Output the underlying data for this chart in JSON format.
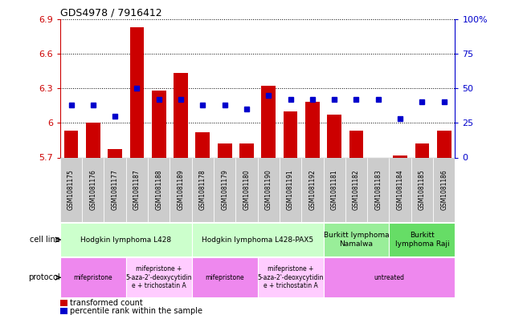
{
  "title": "GDS4978 / 7916412",
  "samples": [
    "GSM1081175",
    "GSM1081176",
    "GSM1081177",
    "GSM1081187",
    "GSM1081188",
    "GSM1081189",
    "GSM1081178",
    "GSM1081179",
    "GSM1081180",
    "GSM1081190",
    "GSM1081191",
    "GSM1081192",
    "GSM1081181",
    "GSM1081182",
    "GSM1081183",
    "GSM1081184",
    "GSM1081185",
    "GSM1081186"
  ],
  "bar_values": [
    5.93,
    6.0,
    5.77,
    6.83,
    6.28,
    6.43,
    5.92,
    5.82,
    5.82,
    6.32,
    6.1,
    6.18,
    6.07,
    5.93,
    5.7,
    5.72,
    5.82,
    5.93
  ],
  "dot_values": [
    38,
    38,
    30,
    50,
    42,
    42,
    38,
    38,
    35,
    45,
    42,
    42,
    42,
    42,
    42,
    28,
    40,
    40
  ],
  "ymin": 5.7,
  "ymax": 6.9,
  "yticks": [
    5.7,
    6.0,
    6.3,
    6.6,
    6.9
  ],
  "ytick_labels": [
    "5.7",
    "6",
    "6.3",
    "6.6",
    "6.9"
  ],
  "y2ticks": [
    0,
    25,
    50,
    75,
    100
  ],
  "y2tick_labels": [
    "0",
    "25",
    "50",
    "75",
    "100%"
  ],
  "bar_color": "#cc0000",
  "dot_color": "#0000cc",
  "cell_line_groups": [
    {
      "label": "Hodgkin lymphoma L428",
      "start": 0,
      "end": 5,
      "color": "#ccffcc"
    },
    {
      "label": "Hodgkin lymphoma L428-PAX5",
      "start": 6,
      "end": 11,
      "color": "#ccffcc"
    },
    {
      "label": "Burkitt lymphoma\nNamalwa",
      "start": 12,
      "end": 14,
      "color": "#99ee99"
    },
    {
      "label": "Burkitt\nlymphoma Raji",
      "start": 15,
      "end": 17,
      "color": "#66dd66"
    }
  ],
  "protocol_groups": [
    {
      "label": "mifepristone",
      "start": 0,
      "end": 2,
      "color": "#ee88ee"
    },
    {
      "label": "mifepristone +\n5-aza-2'-deoxycytidin\ne + trichostatin A",
      "start": 3,
      "end": 5,
      "color": "#ffccff"
    },
    {
      "label": "mifepristone",
      "start": 6,
      "end": 8,
      "color": "#ee88ee"
    },
    {
      "label": "mifepristone +\n5-aza-2'-deoxycytidin\ne + trichostatin A",
      "start": 9,
      "end": 11,
      "color": "#ffccff"
    },
    {
      "label": "untreated",
      "start": 12,
      "end": 17,
      "color": "#ee88ee"
    }
  ],
  "legend_bar_label": "transformed count",
  "legend_dot_label": "percentile rank within the sample",
  "xlabel_bg": "#cccccc",
  "fig_width": 6.51,
  "fig_height": 3.93,
  "dpi": 100
}
